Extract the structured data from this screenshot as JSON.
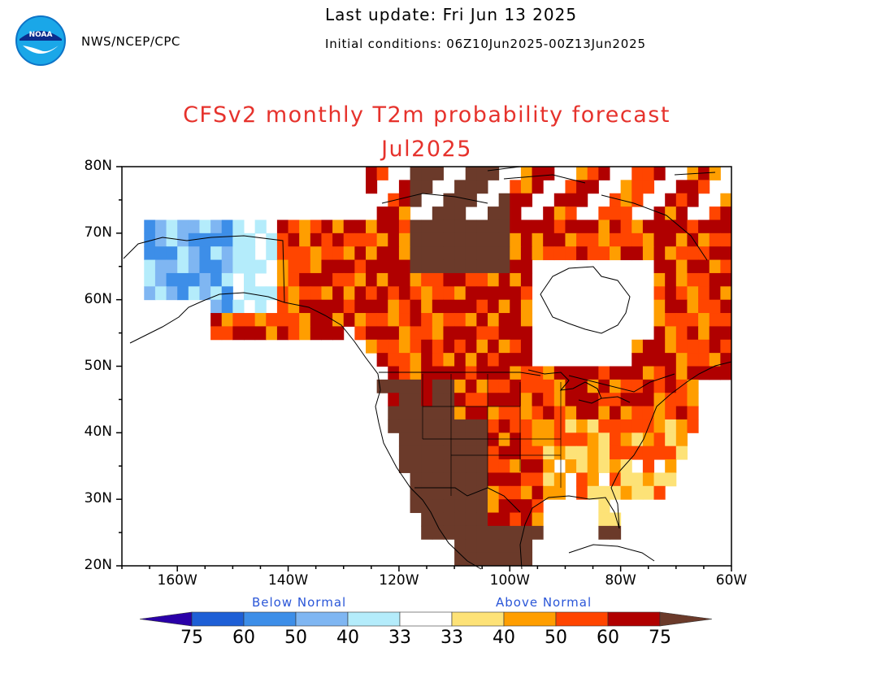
{
  "header": {
    "org": "NWS/NCEP/CPC",
    "last_update": "Last update: Fri Jun 13 2025",
    "initial_conditions": "Initial conditions: 06Z10Jun2025-00Z13Jun2025",
    "logo_text": "NOAA"
  },
  "title": "CFSv2 monthly T2m probability forecast",
  "month": "Jul2025",
  "axes": {
    "lat_labels": [
      "80N",
      "70N",
      "60N",
      "50N",
      "40N",
      "30N",
      "20N"
    ],
    "lon_labels": [
      "160W",
      "140W",
      "120W",
      "100W",
      "80W",
      "60W"
    ],
    "lat_range": [
      20,
      80
    ],
    "lon_range": [
      -170,
      -60
    ]
  },
  "legend": {
    "below_label": "Below Normal",
    "above_label": "Above Normal",
    "values": [
      "75",
      "60",
      "50",
      "40",
      "33",
      "33",
      "40",
      "50",
      "60",
      "75"
    ],
    "colors": [
      "#2a00a8",
      "#1e5fd6",
      "#3d8ee8",
      "#7fb6f2",
      "#b4ecfb",
      "#ffffff",
      "#fde277",
      "#ff9e00",
      "#ff4500",
      "#b00000",
      "#6b3a2a"
    ]
  },
  "colors": {
    "title": "#e6322c",
    "category_label": "#2a56d8"
  }
}
